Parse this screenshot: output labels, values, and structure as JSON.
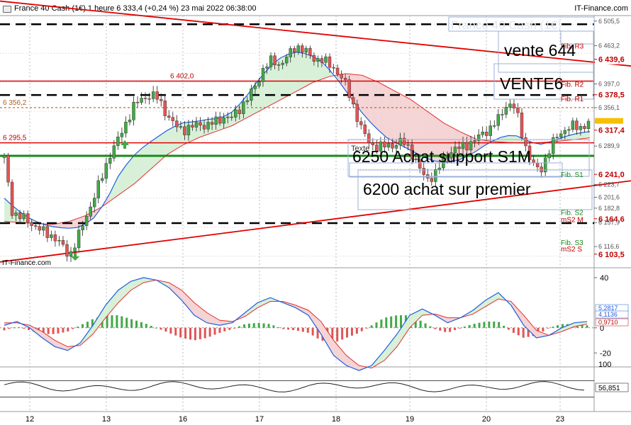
{
  "header": {
    "title": "France 40 Cash (1€) 1 heure 6 333,4 (+0,24 %) 23 mai 2022 06:38:00",
    "source": "IT-Finance.com"
  },
  "footer": {
    "watermark_left": "IT-Finance.com"
  },
  "watermark": "France 40 Cash (1€)",
  "annotations": {
    "vente": "vente 644",
    "vente_caps": "VENTE6",
    "texte": "Texte",
    "achat_support": "6250 Achat support S1M",
    "achat_premier": "6200  achat sur premier"
  },
  "colors": {
    "up": "#43a847",
    "down": "#e05555",
    "ma_fast": "#1f5fe0",
    "ma_slow": "#e03030",
    "fill_up": "#d8f0d8",
    "fill_down": "#f4d4d4",
    "red_line": "#e00000",
    "green_line": "#1a8a1a"
  },
  "chart_data": [
    {
      "type": "candlestick",
      "title": "France 40 Cash (1€) 1 heure",
      "x_ticks": [
        "12",
        "13",
        "16",
        "17",
        "18",
        "19",
        "20",
        "23"
      ],
      "ylim": [
        6080,
        6515
      ],
      "y_ticks": [
        6505.5,
        6463.2,
        6439.6,
        6397.0,
        6378.5,
        6356.1,
        6317.4,
        6289.9,
        6241.0,
        6223.7,
        6201.6,
        6182.8,
        6164.6,
        6157.9,
        6116.6,
        6103.5
      ],
      "y_tick_labels": [
        "6 505,5",
        "6 463,2",
        "6 439,6",
        "6 397,0",
        "6 378,5",
        "6 356,1",
        "6 317,4",
        "6 289,9",
        "6 241,0",
        "6 223,7",
        "6 201,6",
        "6 182,8",
        "6 164,6",
        "6 157,9",
        "6 116,6",
        "6 103,5"
      ],
      "highlight_labels": [
        "6 439,6",
        "6 378,5",
        "6 317,4",
        "6 241,0",
        "6 164,6",
        "6 103,5"
      ],
      "level_labels": [
        {
          "text": "Fib. R3",
          "value": 6463.2
        },
        {
          "text": "Fib. R2",
          "value": 6397.0
        },
        {
          "text": "Fib. R1",
          "value": 6372
        },
        {
          "text": "Fib. S1",
          "value": 6241
        },
        {
          "text": "Fib. S2",
          "value": 6176
        },
        {
          "text": "mS2 M",
          "value": 6164
        },
        {
          "text": "Fib. S3",
          "value": 6124
        },
        {
          "text": "mS2 S",
          "value": 6113
        }
      ],
      "horizontal_lines": [
        {
          "value": 6402.0,
          "label": "6 402,0",
          "style": "solid-red"
        },
        {
          "value": 6356.2,
          "label": "6 356,2",
          "style": "dotted-brown"
        },
        {
          "value": 6295.5,
          "label": "6 295,5",
          "style": "solid-red"
        },
        {
          "value": 6273,
          "label": "",
          "style": "solid-green"
        },
        {
          "value": 6500,
          "label": "",
          "style": "dashed-black"
        },
        {
          "value": 6378,
          "label": "",
          "style": "dashed-black"
        },
        {
          "value": 6157,
          "label": "",
          "style": "dashed-black"
        }
      ],
      "trend_lines": [
        {
          "from": [
            0,
            6540
          ],
          "to": [
            1,
            6428
          ],
          "color": "red"
        },
        {
          "from": [
            0,
            6090
          ],
          "to": [
            1,
            6230
          ],
          "color": "red"
        }
      ],
      "close_path": [
        6270,
        6175,
        6168,
        6160,
        6150,
        6140,
        6135,
        6120,
        6100,
        6130,
        6165,
        6200,
        6235,
        6275,
        6300,
        6330,
        6360,
        6372,
        6378,
        6372,
        6345,
        6325,
        6318,
        6322,
        6328,
        6325,
        6332,
        6340,
        6338,
        6355,
        6372,
        6395,
        6425,
        6438,
        6430,
        6446,
        6463,
        6455,
        6440,
        6441,
        6430,
        6420,
        6398,
        6360,
        6320,
        6295,
        6288,
        6290,
        6292,
        6298,
        6285,
        6255,
        6232,
        6240,
        6262,
        6282,
        6286,
        6292,
        6300,
        6312,
        6322,
        6338,
        6365,
        6355,
        6300,
        6260,
        6245,
        6278,
        6305,
        6318,
        6324,
        6322,
        6330
      ],
      "ma_fast_path": [
        6200,
        6180,
        6165,
        6155,
        6150,
        6148,
        6150,
        6165,
        6195,
        6240,
        6270,
        6290,
        6305,
        6320,
        6330,
        6332,
        6336,
        6338,
        6350,
        6375,
        6405,
        6430,
        6447,
        6452,
        6448,
        6435,
        6410,
        6380,
        6350,
        6325,
        6305,
        6293,
        6282,
        6270,
        6263,
        6262,
        6268,
        6280,
        6295,
        6305,
        6310,
        6300,
        6292,
        6298,
        6306,
        6312,
        6315
      ],
      "ma_slow_path": [
        6160,
        6158,
        6156,
        6155,
        6160,
        6170,
        6185,
        6205,
        6225,
        6250,
        6275,
        6292,
        6305,
        6315,
        6325,
        6340,
        6355,
        6370,
        6385,
        6400,
        6410,
        6415,
        6412,
        6400,
        6385,
        6370,
        6350,
        6330,
        6315,
        6302,
        6298,
        6296,
        6295,
        6296,
        6298,
        6301,
        6304
      ]
    },
    {
      "type": "macd",
      "ylim": [
        -30,
        45
      ],
      "y_ticks": [
        40,
        0,
        -20
      ],
      "value_labels": [
        "5,2817",
        "4,1136",
        "0,9710"
      ],
      "line_fast": [
        2,
        5,
        0,
        -8,
        -15,
        -18,
        -12,
        2,
        18,
        30,
        37,
        40,
        38,
        32,
        22,
        10,
        4,
        2,
        4,
        12,
        20,
        24,
        20,
        16,
        10,
        -5,
        -22,
        -30,
        -34,
        -30,
        -18,
        -5,
        10,
        15,
        10,
        4,
        8,
        14,
        22,
        28,
        18,
        2,
        -8,
        -6,
        0,
        4,
        5
      ],
      "line_slow": [
        4,
        4,
        2,
        -3,
        -10,
        -15,
        -14,
        -5,
        8,
        20,
        30,
        36,
        38,
        36,
        30,
        20,
        12,
        6,
        5,
        9,
        16,
        21,
        21,
        18,
        14,
        5,
        -10,
        -22,
        -30,
        -32,
        -26,
        -15,
        0,
        10,
        11,
        8,
        8,
        11,
        17,
        23,
        21,
        10,
        -2,
        -6,
        -3,
        1,
        3
      ],
      "histogram": [
        -2,
        1,
        -2,
        -5,
        -5,
        -3,
        2,
        7,
        10,
        10,
        7,
        4,
        0,
        -4,
        -8,
        -10,
        -8,
        -4,
        -1,
        3,
        4,
        3,
        -1,
        -2,
        -4,
        -10,
        -12,
        -8,
        -4,
        2,
        8,
        10,
        10,
        5,
        -1,
        -4,
        0,
        3,
        5,
        5,
        -3,
        -8,
        -6,
        0,
        3,
        3,
        2
      ]
    },
    {
      "type": "line",
      "ylim": [
        0,
        100
      ],
      "y_ticks": [
        100
      ],
      "value_label": "56,851",
      "upper": 70,
      "lower": 30
    }
  ]
}
